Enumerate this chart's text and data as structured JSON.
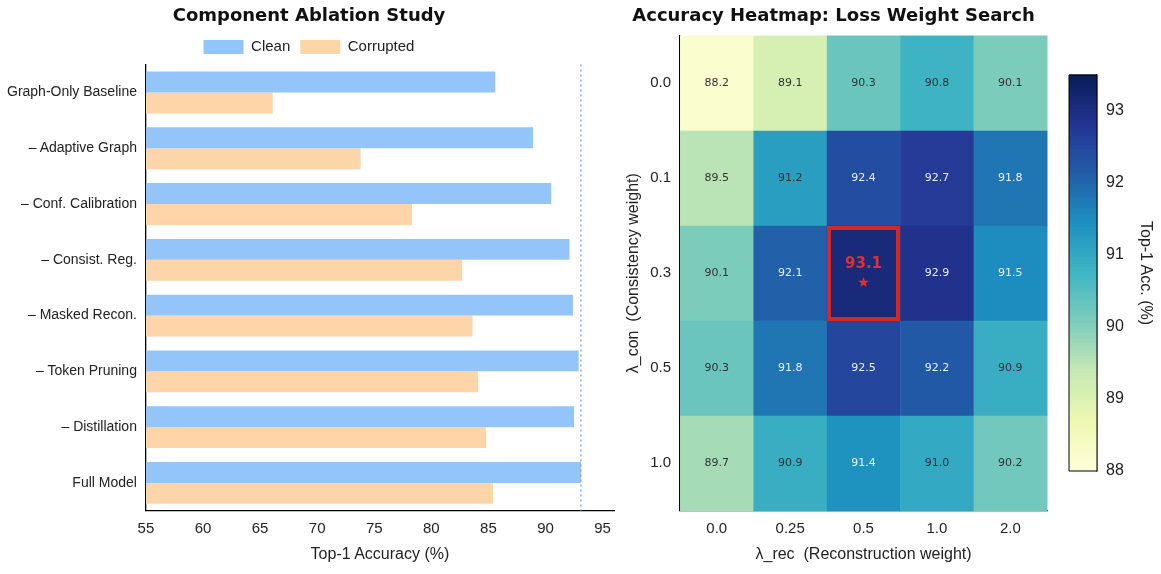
{
  "chart_data": [
    {
      "type": "bar",
      "title": "Component Ablation Study",
      "xlabel": "Top-1 Accuracy (%)",
      "orientation": "horizontal",
      "categories": [
        "Graph-Only Baseline",
        "– Adaptive Graph",
        "– Conf. Calibration",
        "– Consist. Reg.",
        "– Masked Recon.",
        "– Token Pruning",
        "– Distillation",
        "Full Model"
      ],
      "series": [
        {
          "name": "Clean",
          "color": "#93c5fb",
          "values": [
            85.6,
            88.9,
            90.5,
            92.1,
            92.4,
            92.9,
            92.5,
            93.1
          ]
        },
        {
          "name": "Corrupted",
          "color": "#fdd5a8",
          "values": [
            66.1,
            73.8,
            78.3,
            82.7,
            83.6,
            84.1,
            84.8,
            85.4
          ]
        }
      ],
      "xlim": [
        55,
        96
      ],
      "xticks": [
        55,
        60,
        65,
        70,
        75,
        80,
        85,
        90,
        95
      ],
      "ref_lines": [
        {
          "axis": "x",
          "value": 93.1,
          "color": "#6495ed",
          "line_style": "dotted"
        }
      ],
      "grid": false,
      "legend": "top"
    },
    {
      "type": "heatmap",
      "title": "Accuracy Heatmap: Loss Weight Search",
      "xlabel": "λ_rec  (Reconstruction weight)",
      "ylabel": "λ_con  (Consistency weight)",
      "clabel": "Top-1 Acc. (%)",
      "categories": [
        "0.0",
        "0.25",
        "0.5",
        "1.0",
        "2.0"
      ],
      "y_categories": [
        "0.0",
        "0.1",
        "0.3",
        "0.5",
        "1.0"
      ],
      "cells": [
        [
          88.2,
          89.1,
          90.3,
          90.8,
          90.1
        ],
        [
          89.5,
          91.2,
          92.4,
          92.7,
          91.8
        ],
        [
          90.1,
          92.1,
          93.1,
          92.9,
          91.5
        ],
        [
          90.3,
          91.8,
          92.5,
          92.2,
          90.9
        ],
        [
          89.7,
          90.9,
          91.4,
          91.0,
          90.2
        ]
      ],
      "cell_labels": [
        [
          "88.2",
          "89.1",
          "90.3",
          "90.8",
          "90.1"
        ],
        [
          "89.5",
          "91.2",
          "92.4",
          "92.7",
          "91.8"
        ],
        [
          "90.1",
          "92.1",
          "93.1",
          "92.9",
          "91.5"
        ],
        [
          "90.3",
          "91.8",
          "92.5",
          "92.2",
          "90.9"
        ],
        [
          "89.7",
          "90.9",
          "91.4",
          "91.0",
          "90.2"
        ]
      ],
      "clim": [
        88,
        93.5
      ],
      "cticks": [
        88,
        89,
        90,
        91,
        92,
        93
      ],
      "data_labels": true,
      "annotations": [
        "★"
      ]
    }
  ]
}
